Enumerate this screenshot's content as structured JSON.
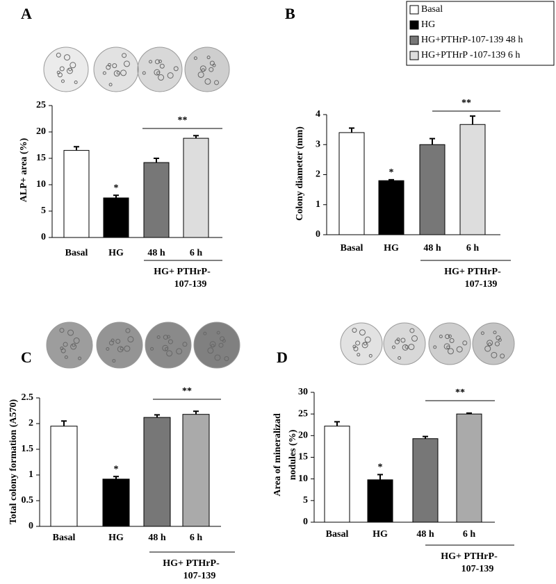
{
  "legend": [
    {
      "label": "Basal",
      "color": "#ffffff"
    },
    {
      "label": "HG",
      "color": "#000000"
    },
    {
      "label": "HG+PTHrP-107-139  48 h",
      "color": "#777777"
    },
    {
      "label": "HG+PTHrP -107-139  6 h",
      "color": "#dddddd"
    }
  ],
  "chart_data": [
    {
      "type": "bar",
      "panel": "A",
      "ylabel": [
        "ALP+ area (%)"
      ],
      "categories": [
        "Basal",
        "HG",
        "48 h",
        "6 h"
      ],
      "values": [
        16.5,
        7.5,
        14.2,
        18.8
      ],
      "errors": [
        0.7,
        0.5,
        0.8,
        0.5
      ],
      "colors": [
        "#ffffff",
        "#000000",
        "#777777",
        "#dddddd"
      ],
      "ylim": [
        0,
        25
      ],
      "yticks": [
        0,
        5,
        10,
        15,
        20,
        25
      ],
      "group_label": [
        "HG+ PTHrP-",
        "107-139"
      ],
      "single_star": "*",
      "double_star": "**"
    },
    {
      "type": "bar",
      "panel": "B",
      "ylabel": [
        "Colony diameter (mm)"
      ],
      "categories": [
        "Basal",
        "HG",
        "48 h",
        "6 h"
      ],
      "values": [
        3.4,
        1.8,
        3.0,
        3.67
      ],
      "errors": [
        0.15,
        0.03,
        0.2,
        0.28
      ],
      "colors": [
        "#ffffff",
        "#000000",
        "#777777",
        "#dddddd"
      ],
      "ylim": [
        0,
        4
      ],
      "yticks": [
        0,
        1,
        2,
        3,
        4
      ],
      "group_label": [
        "HG+ PTHrP-",
        "107-139"
      ],
      "single_star": "*",
      "double_star": "**"
    },
    {
      "type": "bar",
      "panel": "C",
      "ylabel": [
        "Total colony formation (A570)"
      ],
      "categories": [
        "Basal",
        "HG",
        "48 h",
        "6 h"
      ],
      "values": [
        1.95,
        0.92,
        2.12,
        2.18
      ],
      "errors": [
        0.1,
        0.05,
        0.05,
        0.06
      ],
      "colors": [
        "#ffffff",
        "#000000",
        "#777777",
        "#aaaaaa"
      ],
      "ylim": [
        0,
        2.5
      ],
      "yticks": [
        0,
        0.5,
        1,
        1.5,
        2,
        2.5
      ],
      "group_label": [
        "HG+ PTHrP-",
        "107-139"
      ],
      "single_star": "*",
      "double_star": "**"
    },
    {
      "type": "bar",
      "panel": "D",
      "ylabel": [
        "Area of mineralizad",
        "nodules (%)"
      ],
      "categories": [
        "Basal",
        "HG",
        "48 h",
        "6 h"
      ],
      "values": [
        22.2,
        9.8,
        19.3,
        25
      ],
      "errors": [
        1.0,
        1.2,
        0.5,
        0.2
      ],
      "colors": [
        "#ffffff",
        "#000000",
        "#777777",
        "#aaaaaa"
      ],
      "ylim": [
        0,
        30
      ],
      "yticks": [
        0,
        5,
        10,
        15,
        20,
        25,
        30
      ],
      "group_label": [
        "HG+ PTHrP-",
        "107-139"
      ],
      "single_star": "*",
      "double_star": "**"
    }
  ]
}
